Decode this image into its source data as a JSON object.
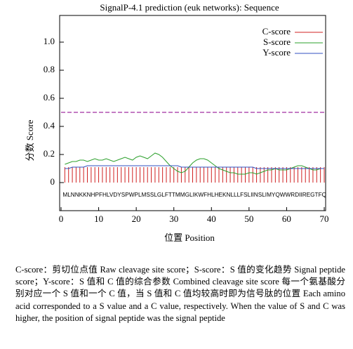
{
  "chart_data": {
    "type": "line",
    "title": "SignalP-4.1 prediction (euk networks): Sequence",
    "x_label": "位置 Position",
    "y_label": "分数 Score",
    "sequence": "MLNNKKNHPFHLVDYSPWPLMSSLGLFTTMMGLIKWFHLHEKNLLLFSLIINSLIMYQWWRDIIREGTFQ",
    "x": [
      1,
      2,
      3,
      4,
      5,
      6,
      7,
      8,
      9,
      10,
      11,
      12,
      13,
      14,
      15,
      16,
      17,
      18,
      19,
      20,
      21,
      22,
      23,
      24,
      25,
      26,
      27,
      28,
      29,
      30,
      31,
      32,
      33,
      34,
      35,
      36,
      37,
      38,
      39,
      40,
      41,
      42,
      43,
      44,
      45,
      46,
      47,
      48,
      49,
      50,
      51,
      52,
      53,
      54,
      55,
      56,
      57,
      58,
      59,
      60,
      61,
      62,
      63,
      64,
      65,
      66,
      67,
      68,
      69,
      70
    ],
    "series": [
      {
        "name": "C-score",
        "color": "#d02020",
        "type": "bar",
        "values": [
          0.11,
          0.11,
          0.11,
          0.11,
          0.11,
          0.11,
          0.11,
          0.11,
          0.11,
          0.11,
          0.11,
          0.11,
          0.11,
          0.11,
          0.11,
          0.11,
          0.11,
          0.11,
          0.11,
          0.11,
          0.11,
          0.11,
          0.11,
          0.11,
          0.11,
          0.11,
          0.11,
          0.11,
          0.11,
          0.11,
          0.11,
          0.11,
          0.11,
          0.11,
          0.11,
          0.11,
          0.11,
          0.11,
          0.11,
          0.11,
          0.11,
          0.11,
          0.11,
          0.11,
          0.11,
          0.11,
          0.11,
          0.11,
          0.11,
          0.11,
          0.11,
          0.11,
          0.11,
          0.11,
          0.11,
          0.11,
          0.11,
          0.11,
          0.11,
          0.11,
          0.11,
          0.11,
          0.11,
          0.11,
          0.11,
          0.11,
          0.11,
          0.11,
          0.11,
          0.11
        ]
      },
      {
        "name": "S-score",
        "color": "#2ca02c",
        "type": "line",
        "values": [
          0.13,
          0.14,
          0.15,
          0.15,
          0.16,
          0.16,
          0.15,
          0.16,
          0.17,
          0.16,
          0.16,
          0.17,
          0.16,
          0.15,
          0.16,
          0.17,
          0.18,
          0.17,
          0.16,
          0.18,
          0.19,
          0.18,
          0.17,
          0.19,
          0.21,
          0.2,
          0.18,
          0.15,
          0.12,
          0.1,
          0.08,
          0.07,
          0.08,
          0.11,
          0.14,
          0.16,
          0.17,
          0.17,
          0.16,
          0.14,
          0.12,
          0.1,
          0.09,
          0.08,
          0.07,
          0.07,
          0.06,
          0.06,
          0.06,
          0.07,
          0.07,
          0.06,
          0.07,
          0.08,
          0.09,
          0.09,
          0.1,
          0.09,
          0.09,
          0.09,
          0.1,
          0.11,
          0.12,
          0.12,
          0.11,
          0.1,
          0.09,
          0.09,
          0.1,
          0.1
        ]
      },
      {
        "name": "Y-score",
        "color": "#3050c0",
        "type": "line",
        "values": [
          0.1,
          0.1,
          0.11,
          0.11,
          0.11,
          0.11,
          0.12,
          0.12,
          0.12,
          0.12,
          0.12,
          0.12,
          0.12,
          0.12,
          0.12,
          0.12,
          0.12,
          0.12,
          0.12,
          0.12,
          0.12,
          0.12,
          0.12,
          0.12,
          0.12,
          0.12,
          0.12,
          0.12,
          0.12,
          0.12,
          0.12,
          0.11,
          0.11,
          0.11,
          0.11,
          0.11,
          0.11,
          0.11,
          0.11,
          0.11,
          0.11,
          0.11,
          0.11,
          0.11,
          0.11,
          0.11,
          0.11,
          0.11,
          0.11,
          0.11,
          0.11,
          0.1,
          0.1,
          0.1,
          0.1,
          0.1,
          0.1,
          0.1,
          0.1,
          0.1,
          0.1,
          0.1,
          0.1,
          0.1,
          0.1,
          0.1,
          0.1,
          0.1,
          0.1,
          0.1
        ]
      }
    ],
    "threshold": 0.5,
    "threshold_color": "#b050b0",
    "xlim": [
      0,
      70
    ],
    "xticks": [
      0,
      10,
      20,
      30,
      40,
      50,
      60,
      70
    ],
    "ylim": [
      -0.2,
      1.19
    ],
    "yticks": [
      0,
      {
        "value": 0.2,
        "label": "0.2"
      },
      {
        "value": 0.4,
        "label": "0.4"
      },
      {
        "value": 0.6,
        "label": "0.6"
      },
      {
        "value": 0.8,
        "label": "0.8"
      },
      {
        "value": 1,
        "label": "1.0"
      }
    ],
    "legend": "top-right"
  },
  "caption": "C-score：剪切位点值 Raw cleavage site score；S-score：S 值的变化趋势 Signal peptide score；Y-score：S 值和 C 值的综合参数 Combined cleavage site score 每一个氨基酸分别对应一个 S 值和一个 C 值，当 S 值和 C 值均较高时即为信号肽的位置 Each amino acid corresponded to a S value and a C value, respectively. When the value of S and C was higher, the position of signal peptide was the signal peptide"
}
